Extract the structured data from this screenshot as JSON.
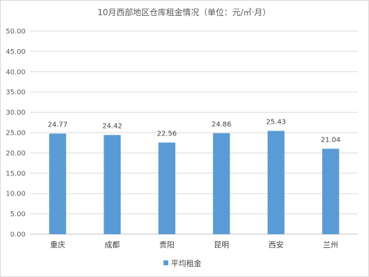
{
  "chart_data": {
    "type": "bar",
    "title": "10月西部地区仓库租金情况（单位：元/㎡·月）",
    "categories": [
      "重庆",
      "成都",
      "贵阳",
      "昆明",
      "西安",
      "兰州"
    ],
    "series": [
      {
        "name": "平均租金",
        "values": [
          24.77,
          24.42,
          22.56,
          24.86,
          25.43,
          21.04
        ],
        "labels": [
          "24.77",
          "24.42",
          "22.56",
          "24.86",
          "25.43",
          "21.04"
        ],
        "color": "#5b9bd5"
      }
    ],
    "ylim": [
      0,
      50
    ],
    "yticks": [
      "0.00",
      "5.00",
      "10.00",
      "15.00",
      "20.00",
      "25.00",
      "30.00",
      "35.00",
      "40.00",
      "45.00",
      "50.00"
    ],
    "grid": true,
    "legend": "bottom",
    "xlabel": "",
    "ylabel": ""
  }
}
